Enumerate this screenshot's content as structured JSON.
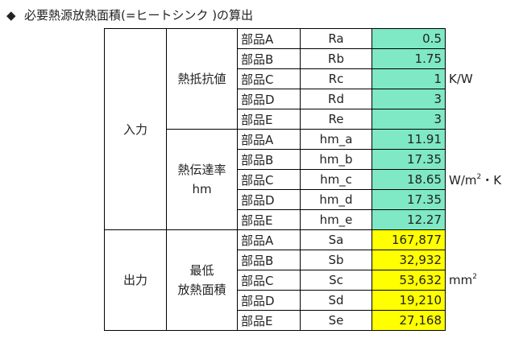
{
  "title": {
    "marker": "◆",
    "text": "必要熱源放熱面積(=ヒートシンク )の算出"
  },
  "colors": {
    "input_fill": "#7fe8c4",
    "output_fill": "#ffff00"
  },
  "input": {
    "label": "入力",
    "resistance": {
      "label": "熱抵抗値",
      "unit": "K/W",
      "rows": [
        {
          "part": "部品A",
          "symbol": "Ra",
          "value": "0.5"
        },
        {
          "part": "部品B",
          "symbol": "Rb",
          "value": "1.75"
        },
        {
          "part": "部品C",
          "symbol": "Rc",
          "value": "1"
        },
        {
          "part": "部品D",
          "symbol": "Rd",
          "value": "3"
        },
        {
          "part": "部品E",
          "symbol": "Re",
          "value": "3"
        }
      ]
    },
    "transfer": {
      "label_line1": "熱伝達率",
      "label_line2": "hm",
      "unit_prefix": "W/m",
      "unit_exp": "2",
      "unit_suffix": "・K",
      "rows": [
        {
          "part": "部品A",
          "symbol": "hm_a",
          "value": "11.91"
        },
        {
          "part": "部品B",
          "symbol": "hm_b",
          "value": "17.35"
        },
        {
          "part": "部品C",
          "symbol": "hm_c",
          "value": "18.65"
        },
        {
          "part": "部品D",
          "symbol": "hm_d",
          "value": "17.35"
        },
        {
          "part": "部品E",
          "symbol": "hm_e",
          "value": "12.27"
        }
      ]
    }
  },
  "output": {
    "label": "出力",
    "area": {
      "label_line1": "最低",
      "label_line2": "放熱面積",
      "unit_prefix": "mm",
      "unit_exp": "2",
      "rows": [
        {
          "part": "部品A",
          "symbol": "Sa",
          "value": "167,877"
        },
        {
          "part": "部品B",
          "symbol": "Sb",
          "value": "32,932"
        },
        {
          "part": "部品C",
          "symbol": "Sc",
          "value": "53,632"
        },
        {
          "part": "部品D",
          "symbol": "Sd",
          "value": "19,210"
        },
        {
          "part": "部品E",
          "symbol": "Se",
          "value": "27,168"
        }
      ]
    }
  }
}
